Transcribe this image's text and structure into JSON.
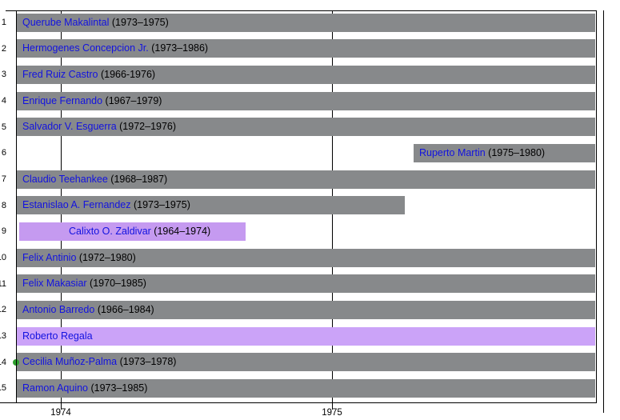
{
  "figure": {
    "background": "#ffffff",
    "bar_color_default": "#87898b",
    "name_color": "#1212e0",
    "years_color": "#000000",
    "axis_color": "#000000",
    "marker_color": "#2ea02e"
  },
  "chart_data": {
    "type": "gantt",
    "title": "",
    "xlabel": "",
    "ylabel": "",
    "x_axis": {
      "visible_range": [
        1973.835,
        1975.974
      ],
      "tick_label_years": [
        1974,
        1975
      ],
      "tick_labels": [
        "1974",
        "1975"
      ],
      "gridline_years": [
        1974,
        1975,
        1976
      ],
      "grid": "on"
    },
    "y_axis": {
      "tick_labels_clipped": true
    },
    "rows": [
      {
        "n": 1,
        "name": "Querube Makalintal",
        "years": "(1973–1975)",
        "term": "1973–1975",
        "start": 1973.838,
        "end": 1975.971,
        "color": "default",
        "indent": 7
      },
      {
        "n": 2,
        "name": "Hermogenes Concepcion Jr.",
        "years": "(1973–1986)",
        "term": "1973–1986",
        "start": 1973.838,
        "end": 1975.971,
        "color": "default",
        "indent": 7
      },
      {
        "n": 3,
        "name": "Fred Ruiz Castro",
        "years": "(1966-1976)",
        "term": "1966-1976",
        "start": 1973.838,
        "end": 1975.971,
        "color": "default",
        "indent": 7
      },
      {
        "n": 4,
        "name": "Enrique Fernando",
        "years": "(1967–1979)",
        "term": "1967–1979",
        "start": 1973.838,
        "end": 1975.971,
        "color": "default",
        "indent": 7
      },
      {
        "n": 5,
        "name": "Salvador V. Esguerra",
        "years": "(1972–1976)",
        "term": "1972–1976",
        "start": 1973.838,
        "end": 1975.971,
        "color": "default",
        "indent": 7
      },
      {
        "n": 6,
        "name": "Ruperto Martin",
        "years": "(1975–1980)",
        "term": "1975–1980",
        "start": 1975.301,
        "end": 1975.971,
        "color": "default",
        "indent": 7
      },
      {
        "n": 7,
        "name": "Claudio Teehankee",
        "years": "(1968–1987)",
        "term": "1968–1987",
        "start": 1973.838,
        "end": 1975.971,
        "color": "default",
        "indent": 7
      },
      {
        "n": 8,
        "name": "Estanislao A. Fernandez",
        "years": "(1973–1975)",
        "term": "1973–1975",
        "start": 1973.838,
        "end": 1975.268,
        "color": "default",
        "indent": 7
      },
      {
        "n": 9,
        "name": "Calixto O. Zaldivar",
        "years": "(1964–1974)",
        "term": "1964–1974",
        "start": 1973.847,
        "end": 1974.681,
        "color": "#c59af0",
        "indent": 62
      },
      {
        "n": 10,
        "name": "Felix Antinio",
        "years": "(1972–1980)",
        "term": "1972–1980",
        "start": 1973.838,
        "end": 1975.971,
        "color": "default",
        "indent": 7
      },
      {
        "n": 11,
        "name": "Felix Makasiar",
        "years": "(1970–1985)",
        "term": "1970–1985",
        "start": 1973.838,
        "end": 1975.971,
        "color": "default",
        "indent": 7
      },
      {
        "n": 12,
        "name": "Antonio Barredo",
        "years": "(1966–1984)",
        "term": "1966–1984",
        "start": 1973.838,
        "end": 1975.971,
        "color": "default",
        "indent": 7
      },
      {
        "n": 13,
        "name": "Roberto Regala",
        "years": "",
        "term": "",
        "start": 1973.838,
        "end": 1975.971,
        "color": "#cba3f8",
        "indent": 7
      },
      {
        "n": 14,
        "name": "Cecilia Muñoz-Palma",
        "years": "(1973–1978)",
        "term": "1973–1978",
        "start": 1973.838,
        "end": 1975.971,
        "color": "default",
        "indent": 7,
        "marker": "green-dot"
      },
      {
        "n": 15,
        "name": "Ramon Aquino",
        "years": "(1973–1985)",
        "term": "1973–1985",
        "start": 1973.838,
        "end": 1975.971,
        "color": "default",
        "indent": 7
      }
    ]
  }
}
